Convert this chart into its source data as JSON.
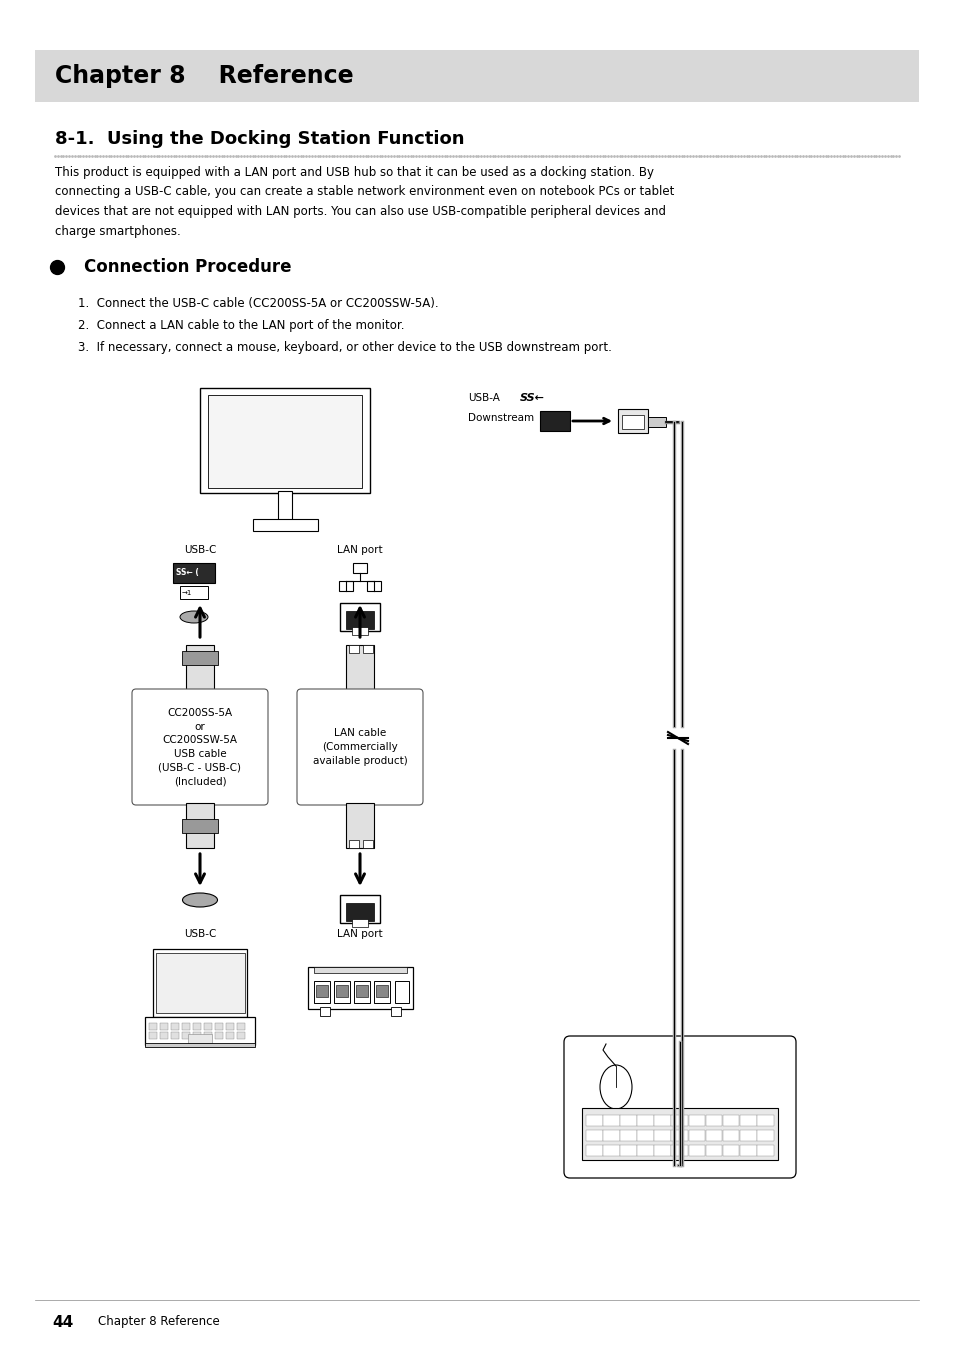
{
  "page_width": 9.54,
  "page_height": 13.5,
  "bg_color": "#ffffff",
  "header_bg": "#d8d8d8",
  "header_text": "Chapter 8    Reference",
  "section_title": "8-1.  Using the Docking Station Function",
  "body_text_lines": [
    "This product is equipped with a LAN port and USB hub so that it can be used as a docking station. By",
    "connecting a USB-C cable, you can create a stable network environment even on notebook PCs or tablet",
    "devices that are not equipped with LAN ports. You can also use USB-compatible peripheral devices and",
    "charge smartphones."
  ],
  "bullet_title": "Connection Procedure",
  "steps": [
    "1.  Connect the USB-C cable (CC200SS-5A or CC200SSW-5A).",
    "2.  Connect a LAN cable to the LAN port of the monitor.",
    "3.  If necessary, connect a mouse, keyboard, or other device to the USB downstream port."
  ],
  "footer_page": "44",
  "footer_text": "Chapter 8 Reference",
  "label_usb_a": "USB-A",
  "label_downstream": "Downstream",
  "label_usb_c_top": "USB-C",
  "label_lan_port_top": "LAN port",
  "label_usb_c_bot": "USB-C",
  "label_lan_port_bot": "LAN port",
  "box1_lines": [
    "CC200SS-5A",
    "or",
    "CC200SSW-5A",
    "USB cable",
    "(USB-C - USB-C)",
    "(Included)"
  ],
  "box2_lines": [
    "LAN cable",
    "(Commercially",
    "available product)"
  ]
}
